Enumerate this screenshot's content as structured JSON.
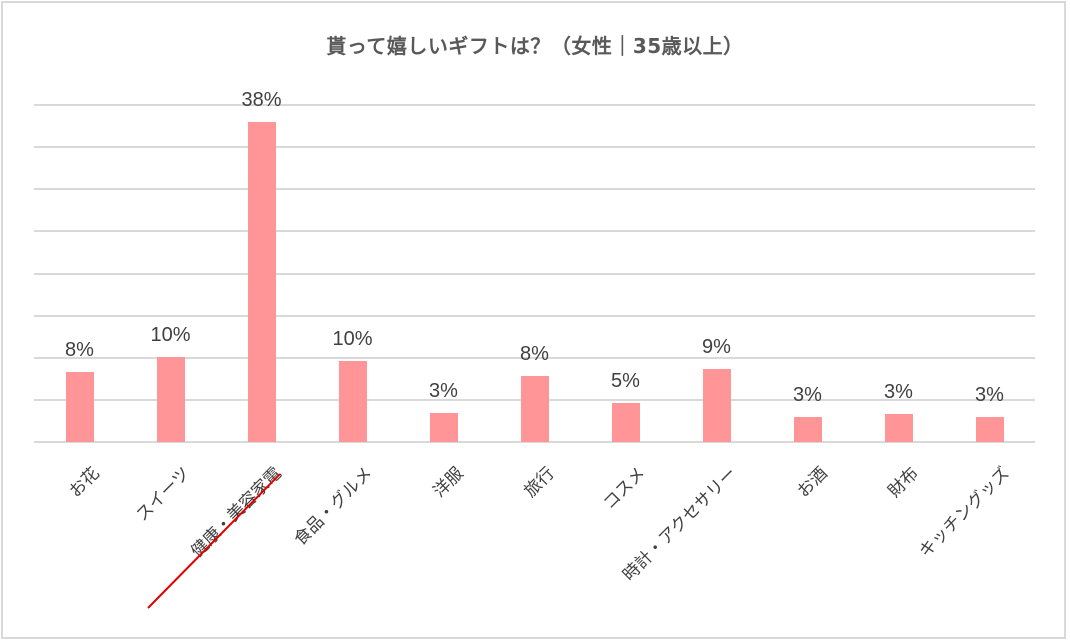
{
  "chart_data": {
    "type": "bar",
    "title": "貰って嬉しいギフトは？（女性｜35歳以上）",
    "xlabel": "",
    "ylabel": "",
    "ylim": [
      0,
      40
    ],
    "grid": true,
    "legend": null,
    "categories": [
      "お花",
      "スイーツ",
      "健康・美容家電",
      "食品・グルメ",
      "洋服",
      "旅行",
      "コスメ",
      "時計・アクセサリー",
      "お酒",
      "財布",
      "キッチングッズ"
    ],
    "values": [
      8,
      10,
      38,
      10,
      3,
      8,
      5,
      9,
      3,
      3,
      3
    ],
    "bar_heights_estimated": [
      8.3,
      10.1,
      38.0,
      9.6,
      3.4,
      7.8,
      4.6,
      8.7,
      3.0,
      3.3,
      3.0
    ],
    "data_labels": [
      "8%",
      "10%",
      "38%",
      "10%",
      "3%",
      "8%",
      "5%",
      "9%",
      "3%",
      "3%",
      "3%"
    ],
    "annotations": [
      {
        "type": "red-underline",
        "target": "健康・美容家電"
      }
    ],
    "colors": {
      "bar": "#FF9597",
      "grid": "#D9D9D9",
      "text": "#404040",
      "title": "#595959",
      "highlight": "#E00000"
    }
  }
}
